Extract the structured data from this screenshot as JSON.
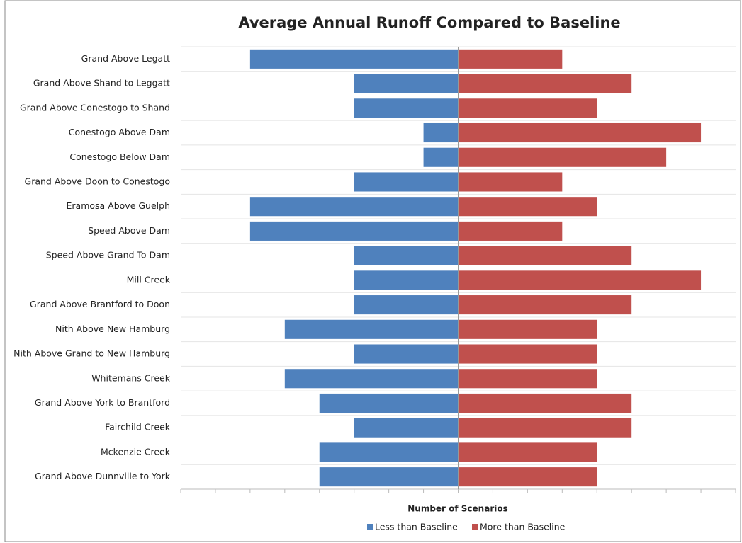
{
  "chart_data": {
    "type": "diverging-bar",
    "title": "Average Annual Runoff Compared to Baseline",
    "x_label": "Number of Scenarios",
    "categories": [
      "Grand Above Legatt",
      "Grand Above Shand to Leggatt",
      "Grand Above Conestogo to Shand",
      "Conestogo Above Dam",
      "Conestogo Below Dam",
      "Grand Above Doon to Conestogo",
      "Eramosa Above Guelph",
      "Speed Above Dam",
      "Speed Above Grand To Dam",
      "Mill Creek",
      "Grand Above Brantford to Doon",
      "Nith Above New Hamburg",
      "Nith Above Grand to New Hamburg",
      "Whitemans Creek",
      "Grand Above York to Brantford",
      "Fairchild Creek",
      "Mckenzie Creek",
      "Grand Above Dunnville to York"
    ],
    "series": [
      {
        "name": "Less than Baseline",
        "color": "#4f81bd",
        "values": [
          -6,
          -3,
          -3,
          -1,
          -1,
          -3,
          -6,
          -6,
          -3,
          -3,
          -3,
          -5,
          -3,
          -5,
          -4,
          -3,
          -4,
          -4
        ]
      },
      {
        "name": "More than Baseline",
        "color": "#c0504d",
        "values": [
          3,
          5,
          4,
          7,
          6,
          3,
          4,
          3,
          5,
          7,
          5,
          4,
          4,
          4,
          5,
          5,
          4,
          4
        ]
      }
    ],
    "xlim": [
      -8,
      8
    ],
    "xticks": [
      -8,
      -7,
      -6,
      -5,
      -4,
      -3,
      -2,
      -1,
      0,
      1,
      2,
      3,
      4,
      5,
      6,
      7,
      8
    ],
    "grid": true,
    "legend": "bottom"
  }
}
